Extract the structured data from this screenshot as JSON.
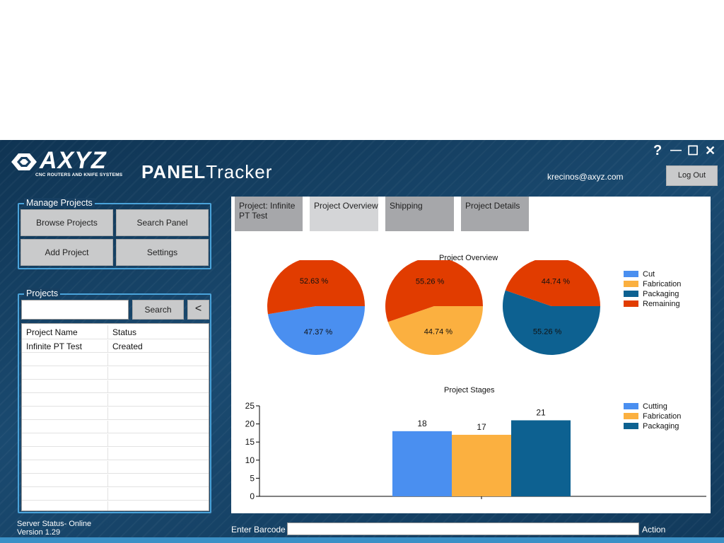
{
  "header": {
    "logo_text": "AXYZ",
    "logo_subtitle": "CNC ROUTERS AND KNIFE SYSTEMS",
    "app_title_bold": "PANEL",
    "app_title_light": "Tracker",
    "user_email": "krecinos@axyz.com",
    "logout_label": "Log Out",
    "help_glyph": "?",
    "minimize_glyph": "—",
    "maximize_glyph": "☐",
    "close_glyph": "✕"
  },
  "manage_projects": {
    "label": "Manage Projects",
    "browse_label": "Browse Projects",
    "search_panel_label": "Search Panel",
    "add_label": "Add Project",
    "settings_label": "Settings"
  },
  "projects": {
    "label": "Projects",
    "search_value": "",
    "search_label": "Search",
    "back_label": "<",
    "columns": [
      "Project Name",
      "Status"
    ],
    "rows": [
      {
        "name": "Infinite PT Test",
        "status": "Created"
      }
    ]
  },
  "status": {
    "server": "Server Status- Online",
    "version": "Version 1.29"
  },
  "tabs": [
    {
      "label": "Project: Infinite PT Test",
      "active": false
    },
    {
      "label": "Project Overview",
      "active": true
    },
    {
      "label": "Shipping",
      "active": false
    },
    {
      "label": "Project Details",
      "active": false
    }
  ],
  "barcode": {
    "label": "Enter Barcode",
    "value": "",
    "action_label": "Action"
  },
  "colors": {
    "cut": "#4a8ff0",
    "fabrication": "#fbb040",
    "packaging": "#0d6191",
    "remaining": "#e13c00",
    "accent": "#4aa3da"
  },
  "chart_data": [
    {
      "type": "pie",
      "title": "Project Overview",
      "legend": [
        "Cut",
        "Fabrication",
        "Packaging",
        "Remaining"
      ],
      "legend_position": "right",
      "pies": [
        {
          "slices": [
            {
              "name": "Cut",
              "value": 47.37,
              "label": "47.37 %"
            },
            {
              "name": "Remaining",
              "value": 52.63,
              "label": "52.63 %"
            }
          ]
        },
        {
          "slices": [
            {
              "name": "Fabrication",
              "value": 44.74,
              "label": "44.74 %"
            },
            {
              "name": "Remaining",
              "value": 55.26,
              "label": "55.26 %"
            }
          ]
        },
        {
          "slices": [
            {
              "name": "Packaging",
              "value": 55.26,
              "label": "55.26 %"
            },
            {
              "name": "Remaining",
              "value": 44.74,
              "label": "44.74 %"
            }
          ]
        }
      ]
    },
    {
      "type": "bar",
      "title": "Project Stages",
      "legend": [
        "Cutting",
        "Fabrication",
        "Packaging"
      ],
      "legend_position": "right",
      "series": [
        {
          "name": "Cutting",
          "values": [
            18
          ]
        },
        {
          "name": "Fabrication",
          "values": [
            17
          ]
        },
        {
          "name": "Packaging",
          "values": [
            21
          ]
        }
      ],
      "ylim": [
        0,
        25
      ],
      "yticks": [
        0,
        5,
        10,
        15,
        20,
        25
      ],
      "grid": false
    }
  ]
}
